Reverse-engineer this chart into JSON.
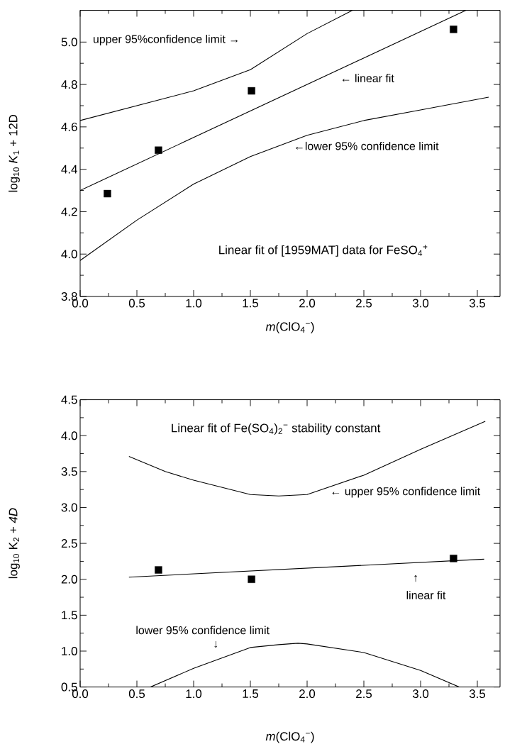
{
  "chart_data": [
    {
      "type": "scatter",
      "title": "Linear fit of [1959MAT] data for FeSO$_{4}$$^{+}$",
      "xlabel": "*m*(ClO$_{4}$$^{−}$)",
      "ylabel": "log$_{10}$ *K*$_{1}$  + 12D",
      "xlim": [
        0,
        3.7
      ],
      "ylim": [
        3.8,
        5.15
      ],
      "xticks": [
        {
          "value": 0,
          "label": "0.0"
        },
        {
          "value": 0.5,
          "label": "0.5"
        },
        {
          "value": 1,
          "label": "1.0"
        },
        {
          "value": 1.5,
          "label": "1.5"
        },
        {
          "value": 2,
          "label": "2.0"
        },
        {
          "value": 2.5,
          "label": "2.5"
        },
        {
          "value": 3,
          "label": "3.0"
        },
        {
          "value": 3.5,
          "label": "3.5"
        }
      ],
      "yticks": [
        {
          "value": 3.8,
          "label": "3.8"
        },
        {
          "value": 4,
          "label": "4.0"
        },
        {
          "value": 4.2,
          "label": "4.2"
        },
        {
          "value": 4.4,
          "label": "4.4"
        },
        {
          "value": 4.6,
          "label": "4.6"
        },
        {
          "value": 4.8,
          "label": "4.8"
        },
        {
          "value": 5,
          "label": "5.0"
        }
      ],
      "series": [
        {
          "marker": "square",
          "color": "#000000",
          "x": [
            0.24,
            0.69,
            1.51,
            3.29
          ],
          "values": [
            4.285,
            4.49,
            4.77,
            5.06
          ]
        },
        {
          "type": "line",
          "color": "#000000",
          "x": [
            0,
            3.4
          ],
          "values": [
            4.3,
            5.15
          ]
        },
        {
          "type": "line",
          "color": "#000000",
          "x": [
            0,
            0.5,
            1.0,
            1.5,
            2.0,
            2.4
          ],
          "values": [
            4.63,
            4.7,
            4.77,
            4.87,
            5.04,
            5.15
          ]
        },
        {
          "type": "line",
          "color": "#000000",
          "x": [
            0,
            0.5,
            1.0,
            1.5,
            2.0,
            2.5,
            3.0,
            3.6
          ],
          "values": [
            3.97,
            4.16,
            4.33,
            4.46,
            4.56,
            4.63,
            4.68,
            4.74
          ]
        }
      ],
      "annotations": [
        "upper 95%confidence limit →",
        "← linear fit",
        "←lower 95% confidence limit"
      ]
    },
    {
      "type": "scatter",
      "title": "Linear fit of Fe(SO$_{4}$)$_{2}$$^{−}$ stability constant",
      "xlabel": "*m*(ClO$_{4}$$^{−}$)",
      "ylabel": "log$_{10}$ K$_{2}$ + *4D*",
      "xlim": [
        0,
        3.7
      ],
      "ylim": [
        0.5,
        4.5
      ],
      "xticks": [
        {
          "value": 0,
          "label": "0.0"
        },
        {
          "value": 0.5,
          "label": "0.5"
        },
        {
          "value": 1,
          "label": "1.0"
        },
        {
          "value": 1.5,
          "label": "1.5"
        },
        {
          "value": 2,
          "label": "2.0"
        },
        {
          "value": 2.5,
          "label": "2.5"
        },
        {
          "value": 3,
          "label": "3.0"
        },
        {
          "value": 3.5,
          "label": "3.5"
        }
      ],
      "yticks": [
        {
          "value": 0.5,
          "label": "0.5"
        },
        {
          "value": 1,
          "label": "1.0"
        },
        {
          "value": 1.5,
          "label": "1.5"
        },
        {
          "value": 2,
          "label": "2.0"
        },
        {
          "value": 2.5,
          "label": "2.5"
        },
        {
          "value": 3,
          "label": "3.0"
        },
        {
          "value": 3.5,
          "label": "3.5"
        },
        {
          "value": 4,
          "label": "4.0"
        },
        {
          "value": 4.5,
          "label": "4.5"
        }
      ],
      "series": [
        {
          "marker": "square",
          "color": "#000000",
          "x": [
            0.69,
            1.51,
            3.29
          ],
          "values": [
            2.13,
            2.0,
            2.29
          ]
        },
        {
          "type": "line",
          "color": "#000000",
          "x": [
            0.43,
            3.56
          ],
          "values": [
            2.03,
            2.28
          ]
        },
        {
          "type": "line",
          "color": "#000000",
          "x": [
            0.43,
            0.75,
            1.0,
            1.5,
            1.75,
            2.0,
            2.5,
            3.0,
            3.57
          ],
          "values": [
            3.71,
            3.5,
            3.38,
            3.18,
            3.16,
            3.18,
            3.45,
            3.81,
            4.2
          ]
        },
        {
          "type": "line",
          "color": "#000000",
          "x": [
            0.62,
            1.0,
            1.5,
            1.75,
            1.92,
            2.0,
            2.5,
            3.0,
            3.34
          ],
          "values": [
            0.5,
            0.76,
            1.05,
            1.09,
            1.11,
            1.1,
            0.98,
            0.73,
            0.5
          ]
        }
      ],
      "annotations": [
        "← upper 95% confidence limit",
        "↑",
        "linear fit",
        "lower 95% confidence limit",
        "↓"
      ]
    }
  ]
}
